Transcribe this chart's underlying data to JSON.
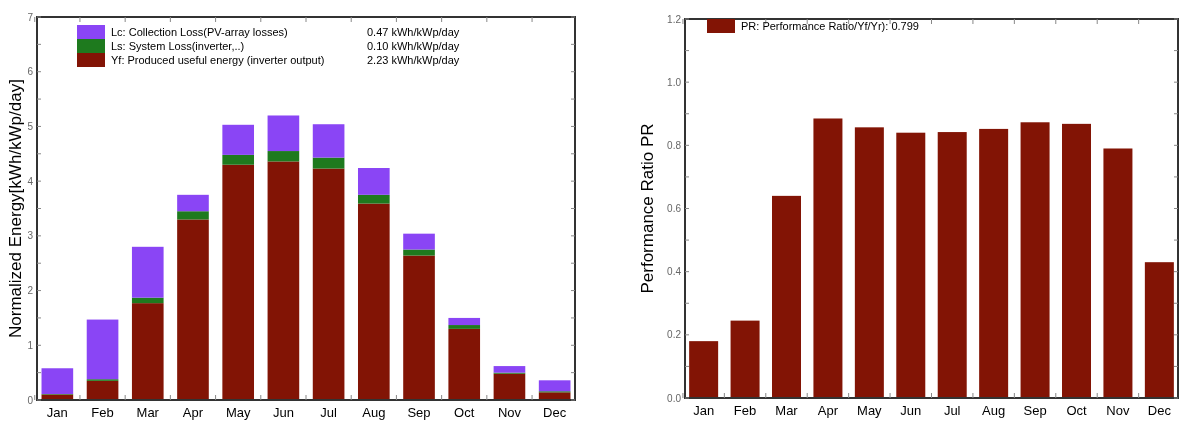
{
  "chart_data": [
    {
      "type": "bar",
      "stacked": true,
      "ylabel": "Normalized Energy[kWh/kWp/day]",
      "categories": [
        "Jan",
        "Feb",
        "Mar",
        "Apr",
        "May",
        "Jun",
        "Jul",
        "Aug",
        "Sep",
        "Oct",
        "Nov",
        "Dec"
      ],
      "series": [
        {
          "name": "Yf: Produced useful energy (inverter output)",
          "color": "#821405",
          "values": [
            0.1,
            0.35,
            1.77,
            3.3,
            4.3,
            4.36,
            4.23,
            3.59,
            2.64,
            1.3,
            0.48,
            0.14
          ]
        },
        {
          "name": "Ls: System Loss(inverter,..)",
          "color": "#1e7a1e",
          "values": [
            0.01,
            0.03,
            0.1,
            0.15,
            0.18,
            0.19,
            0.2,
            0.16,
            0.11,
            0.07,
            0.02,
            0.02
          ]
        },
        {
          "name": "Lc: Collection Loss(PV-array losses)",
          "color": "#8a45f5",
          "values": [
            0.47,
            1.09,
            0.93,
            0.3,
            0.55,
            0.65,
            0.61,
            0.49,
            0.29,
            0.13,
            0.12,
            0.2
          ]
        }
      ],
      "annotations": [
        "0.47 kWh/kWp/day",
        "0.10 kWh/kWp/day",
        "2.23 kWh/kWp/day"
      ],
      "ylim": [
        0,
        7
      ],
      "yticks": [
        0,
        {
          "value": 0.5,
          "label": null
        },
        1,
        {
          "value": 1.5,
          "label": null
        },
        2,
        {
          "value": 2.5,
          "label": null
        },
        3,
        {
          "value": 3.5,
          "label": null
        },
        4,
        {
          "value": 4.5,
          "label": null
        },
        5,
        {
          "value": 5.5,
          "label": null
        },
        6,
        {
          "value": 6.5,
          "label": null
        },
        7
      ],
      "legend": "top left",
      "grid": false
    },
    {
      "type": "bar",
      "ylabel": "Performance Ratio PR",
      "categories": [
        "Jan",
        "Feb",
        "Mar",
        "Apr",
        "May",
        "Jun",
        "Jul",
        "Aug",
        "Sep",
        "Oct",
        "Nov",
        "Dec"
      ],
      "series": [
        {
          "name": "PR: Performance Ratio/Yf/Yr): 0.799",
          "color": "#821405",
          "values": [
            0.18,
            0.245,
            0.64,
            0.885,
            0.857,
            0.84,
            0.842,
            0.852,
            0.873,
            0.868,
            0.79,
            0.43
          ]
        }
      ],
      "ylim": [
        0,
        1.2
      ],
      "yticks": [
        {
          "value": 0,
          "label": "0.0"
        },
        {
          "value": 0.1,
          "label": null
        },
        {
          "value": 0.2,
          "label": "0.2"
        },
        {
          "value": 0.3,
          "label": null
        },
        {
          "value": 0.4,
          "label": "0.4"
        },
        {
          "value": 0.5,
          "label": null
        },
        {
          "value": 0.6,
          "label": "0.6"
        },
        {
          "value": 0.7,
          "label": null
        },
        {
          "value": 0.8,
          "label": "0.8"
        },
        {
          "value": 0.9,
          "label": null
        },
        {
          "value": 1,
          "label": "1.0"
        },
        {
          "value": 1.1,
          "label": null
        },
        {
          "value": 1.2,
          "label": "1.2"
        }
      ],
      "legend": "top left",
      "grid": false
    }
  ]
}
